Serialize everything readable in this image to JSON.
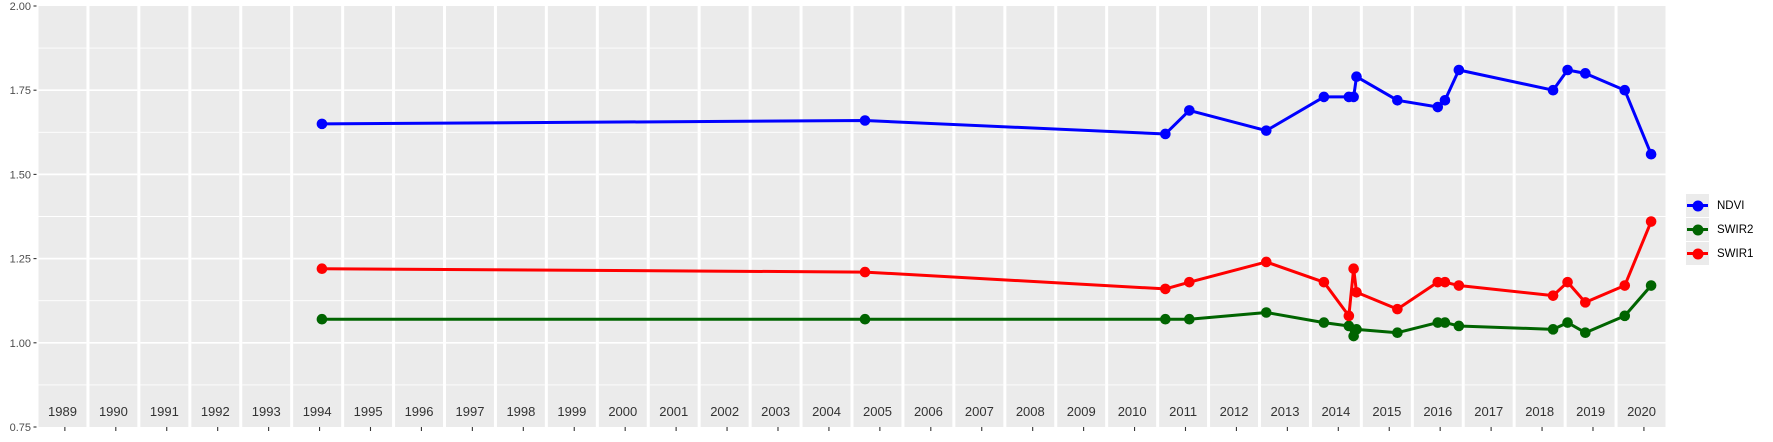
{
  "chart_data": {
    "type": "line",
    "title": "",
    "xlabel": "",
    "ylabel": "",
    "legend_position": "right",
    "grid": "white major and minor gridlines on grey panels",
    "panel_color": "#ebebeb",
    "ylim": [
      0.75,
      2.0
    ],
    "ytick_values": [
      2.0,
      1.75,
      1.5,
      1.25,
      1.0,
      0.75
    ],
    "ytick_labels": [
      "2.00",
      "1.75",
      "1.50",
      "1.25",
      "1.00",
      "0.75"
    ],
    "minor_ytick_values": [
      0.875,
      1.125,
      1.375,
      1.625,
      1.875
    ],
    "year_panels": [
      "1989",
      "1990",
      "1991",
      "1992",
      "1993",
      "1994",
      "1995",
      "1996",
      "1997",
      "1998",
      "1999",
      "2000",
      "2001",
      "2002",
      "2003",
      "2004",
      "2005",
      "2006",
      "2007",
      "2008",
      "2009",
      "2010",
      "2011",
      "2012",
      "2013",
      "2014",
      "2015",
      "2016",
      "2017",
      "2018",
      "2019",
      "2020"
    ],
    "x": [
      1994.6,
      2005.24,
      2011.13,
      2011.63,
      2013.11,
      2014.25,
      2014.77,
      2014.87,
      2014.93,
      2015.72,
      2016.5,
      2016.65,
      2016.94,
      2018.78,
      2019.02,
      2019.39,
      2020.15,
      2020.7
    ],
    "series": [
      {
        "name": "NDVI",
        "color": "#0000ff",
        "values": [
          1.65,
          1.66,
          1.62,
          1.69,
          1.63,
          1.73,
          1.73,
          1.73,
          1.79,
          1.72,
          1.7,
          1.72,
          1.81,
          1.75,
          1.81,
          1.8,
          1.75,
          1.56
        ]
      },
      {
        "name": "SWIR2",
        "color": "#006400",
        "values": [
          1.07,
          1.07,
          1.07,
          1.07,
          1.09,
          1.06,
          1.05,
          1.02,
          1.04,
          1.03,
          1.06,
          1.06,
          1.05,
          1.04,
          1.06,
          1.03,
          1.08,
          1.17
        ]
      },
      {
        "name": "SWIR1",
        "color": "#ff0000",
        "values": [
          1.22,
          1.21,
          1.16,
          1.18,
          1.24,
          1.18,
          1.08,
          1.22,
          1.15,
          1.1,
          1.18,
          1.18,
          1.17,
          1.14,
          1.18,
          1.12,
          1.17,
          1.36
        ]
      }
    ]
  }
}
